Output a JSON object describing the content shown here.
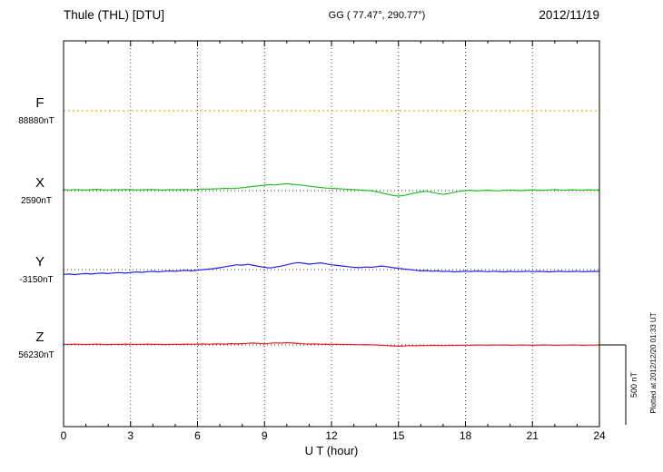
{
  "header": {
    "title": "Thule (THL)  [DTU]",
    "gg": "GG ( 77.47°, 290.77°)",
    "date": "2012/11/19"
  },
  "side_note": "Plotted at 2012/12/20 01:33 UT",
  "axis": {
    "label": "U T (hour)",
    "ticks": [
      0,
      3,
      6,
      9,
      12,
      15,
      18,
      21,
      24
    ],
    "xmin": 0,
    "xmax": 24
  },
  "scale_bar": {
    "label": "500 nT",
    "nT": 500
  },
  "chart_data": {
    "type": "line",
    "title": "Thule (THL) [DTU] magnetogram 2012/11/19",
    "xlabel": "U T (hour)",
    "x_range": [
      0,
      24
    ],
    "grid": "dotted vertical every 3 hours, dotted horizontal baselines per channel",
    "scale_note": "500 nT vertical scale bar at right",
    "series": [
      {
        "name": "F",
        "color": "#ffaa00",
        "baseline_label": "88880nT",
        "baseline_nT": 88880,
        "style": "dotted",
        "step_hours": 24,
        "offsets_nT": [
          0,
          0
        ]
      },
      {
        "name": "X",
        "color": "#22c022",
        "baseline_label": "2590nT",
        "baseline_nT": 2590,
        "style": "solid",
        "step_hours": 0.25,
        "offsets_nT": [
          6,
          4,
          7,
          5,
          3,
          6,
          8,
          5,
          4,
          6,
          5,
          7,
          6,
          4,
          5,
          6,
          7,
          5,
          4,
          6,
          5,
          6,
          7,
          5,
          8,
          10,
          9,
          11,
          12,
          14,
          13,
          15,
          18,
          22,
          26,
          30,
          34,
          38,
          35,
          40,
          43,
          39,
          36,
          33,
          28,
          24,
          20,
          16,
          14,
          12,
          10,
          8,
          6,
          4,
          2,
          0,
          -6,
          -14,
          -22,
          -30,
          -34,
          -30,
          -22,
          -14,
          -8,
          -4,
          -10,
          -18,
          -24,
          -18,
          -10,
          -4,
          0,
          2,
          -2,
          1,
          3,
          0,
          -1,
          2,
          4,
          2,
          0,
          3,
          5,
          3,
          2,
          4,
          6,
          4,
          3,
          5,
          4,
          3,
          5,
          4,
          5
        ]
      },
      {
        "name": "Y",
        "color": "#2222ee",
        "baseline_label": "-3150nT",
        "baseline_nT": -3150,
        "style": "solid",
        "step_hours": 0.25,
        "offsets_nT": [
          -30,
          -28,
          -31,
          -27,
          -25,
          -28,
          -24,
          -22,
          -25,
          -21,
          -19,
          -22,
          -18,
          -15,
          -17,
          -13,
          -11,
          -14,
          -10,
          -8,
          -11,
          -7,
          -5,
          -8,
          -4,
          0,
          3,
          6,
          12,
          18,
          24,
          30,
          28,
          33,
          26,
          20,
          14,
          10,
          16,
          22,
          30,
          38,
          44,
          40,
          34,
          38,
          42,
          36,
          30,
          26,
          22,
          18,
          14,
          12,
          16,
          14,
          18,
          22,
          18,
          12,
          8,
          4,
          0,
          -4,
          -8,
          -6,
          -10,
          -8,
          -12,
          -10,
          -14,
          -12,
          -10,
          -12,
          -9,
          -11,
          -13,
          -10,
          -12,
          -14,
          -11,
          -13,
          -12,
          -10,
          -13,
          -11,
          -12,
          -14,
          -12,
          -11,
          -13,
          -12,
          -11,
          -13,
          -12,
          -11,
          -12
        ]
      },
      {
        "name": "Z",
        "color": "#ee2222",
        "baseline_label": "56230nT",
        "baseline_nT": 56230,
        "style": "solid",
        "step_hours": 0.25,
        "offsets_nT": [
          4,
          3,
          5,
          4,
          2,
          4,
          5,
          3,
          2,
          4,
          3,
          5,
          4,
          3,
          4,
          5,
          3,
          4,
          2,
          3,
          4,
          3,
          5,
          4,
          5,
          6,
          4,
          6,
          7,
          5,
          8,
          6,
          8,
          10,
          12,
          9,
          7,
          10,
          13,
          11,
          14,
          12,
          9,
          7,
          5,
          6,
          4,
          5,
          3,
          4,
          2,
          3,
          2,
          1,
          2,
          1,
          0,
          -2,
          -4,
          -6,
          -8,
          -6,
          -4,
          -5,
          -3,
          -4,
          -2,
          -3,
          -4,
          -2,
          -3,
          -2,
          -1,
          -2,
          0,
          -1,
          -2,
          0,
          -1,
          0,
          -2,
          -1,
          0,
          -1,
          -2,
          -1,
          0,
          -1,
          -2,
          -1,
          -1,
          0,
          -1,
          -2,
          -1,
          -1,
          -1
        ]
      }
    ]
  }
}
